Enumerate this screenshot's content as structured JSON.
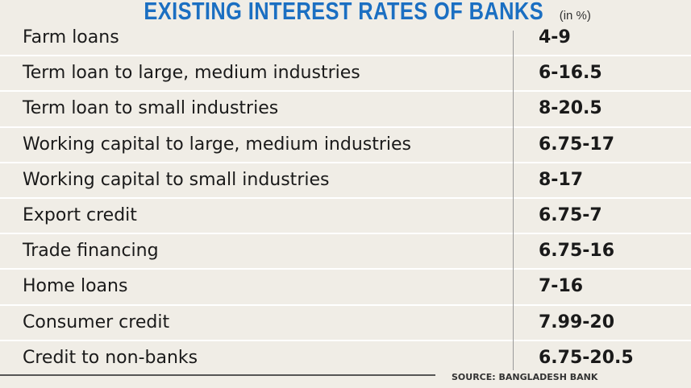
{
  "header": {
    "title": "EXISTING INTEREST RATES OF BANKS",
    "unit": "(in %)"
  },
  "table": {
    "rows": [
      [
        "Farm loans",
        "4-9"
      ],
      [
        "Term loan to large, medium industries",
        "6-16.5"
      ],
      [
        "Term loan to small industries",
        "8-20.5"
      ],
      [
        "Working capital to large, medium industries",
        "6.75-17"
      ],
      [
        "Working capital to small industries",
        "8-17"
      ],
      [
        "Export credit",
        "6.75-7"
      ],
      [
        "Trade financing",
        "6.75-16"
      ],
      [
        "Home loans",
        "7-16"
      ],
      [
        "Consumer credit",
        "7.99-20"
      ],
      [
        "Credit to non-banks",
        "6.75-20.5"
      ]
    ]
  },
  "footer": {
    "source": "SOURCE: BANGLADESH BANK"
  }
}
